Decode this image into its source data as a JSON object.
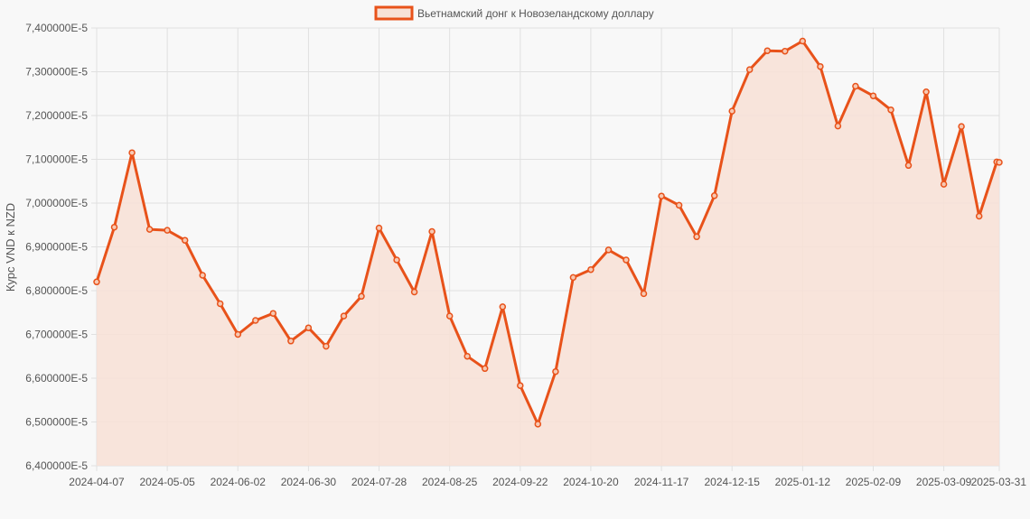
{
  "chart_data": {
    "type": "area",
    "title": "",
    "legend": {
      "label": "Вьетнамский донг к Новозеландскому доллару",
      "position": "top-center"
    },
    "ylabel": "Курс VND к NZD",
    "xlabel": "",
    "ylim": [
      6.4e-05,
      7.4e-05
    ],
    "yticks": [
      "7,400000E-5",
      "7,300000E-5",
      "7,200000E-5",
      "7,100000E-5",
      "7,000000E-5",
      "6,900000E-5",
      "6,800000E-5",
      "6,700000E-5",
      "6,600000E-5",
      "6,500000E-5",
      "6,400000E-5"
    ],
    "xticks": [
      "2024-04-07",
      "2024-05-05",
      "2024-06-02",
      "2024-06-30",
      "2024-07-28",
      "2024-08-25",
      "2024-09-22",
      "2024-10-20",
      "2024-11-17",
      "2024-12-15",
      "2025-01-12",
      "2025-02-09",
      "2025-03-09",
      "2025-03-31"
    ],
    "grid": true,
    "colors": {
      "line": "#e8521a",
      "fill": "#f7e1d7",
      "grid": "#e0e0e0",
      "text": "#555555"
    },
    "x": [
      "2024-04-07",
      "2024-04-14",
      "2024-04-21",
      "2024-04-28",
      "2024-05-05",
      "2024-05-12",
      "2024-05-19",
      "2024-05-26",
      "2024-06-02",
      "2024-06-09",
      "2024-06-16",
      "2024-06-23",
      "2024-06-30",
      "2024-07-07",
      "2024-07-14",
      "2024-07-21",
      "2024-07-28",
      "2024-08-04",
      "2024-08-11",
      "2024-08-18",
      "2024-08-25",
      "2024-09-01",
      "2024-09-08",
      "2024-09-15",
      "2024-09-22",
      "2024-09-29",
      "2024-10-06",
      "2024-10-13",
      "2024-10-20",
      "2024-10-27",
      "2024-11-03",
      "2024-11-10",
      "2024-11-17",
      "2024-11-24",
      "2024-12-01",
      "2024-12-08",
      "2024-12-15",
      "2024-12-22",
      "2024-12-29",
      "2025-01-05",
      "2025-01-12",
      "2025-01-19",
      "2025-01-26",
      "2025-02-02",
      "2025-02-09",
      "2025-02-16",
      "2025-02-23",
      "2025-03-02",
      "2025-03-09",
      "2025-03-16",
      "2025-03-23",
      "2025-03-30",
      "2025-03-31"
    ],
    "values": [
      6.82e-05,
      6.945e-05,
      7.115e-05,
      6.94e-05,
      6.938e-05,
      6.915e-05,
      6.835e-05,
      6.77e-05,
      6.7e-05,
      6.732e-05,
      6.748e-05,
      6.685e-05,
      6.715e-05,
      6.673e-05,
      6.742e-05,
      6.787e-05,
      6.943e-05,
      6.87e-05,
      6.797e-05,
      6.935e-05,
      6.742e-05,
      6.65e-05,
      6.622e-05,
      6.763e-05,
      6.583e-05,
      6.495e-05,
      6.615e-05,
      6.83e-05,
      6.848e-05,
      6.893e-05,
      6.87e-05,
      6.793e-05,
      7.016e-05,
      6.995e-05,
      6.923e-05,
      7.017e-05,
      7.21e-05,
      7.305e-05,
      7.348e-05,
      7.347e-05,
      7.37e-05,
      7.312e-05,
      7.176e-05,
      7.267e-05,
      7.245e-05,
      7.213e-05,
      7.086e-05,
      7.254e-05,
      7.043e-05,
      7.175e-05,
      6.97e-05,
      7.094e-05,
      7.093e-05
    ]
  }
}
